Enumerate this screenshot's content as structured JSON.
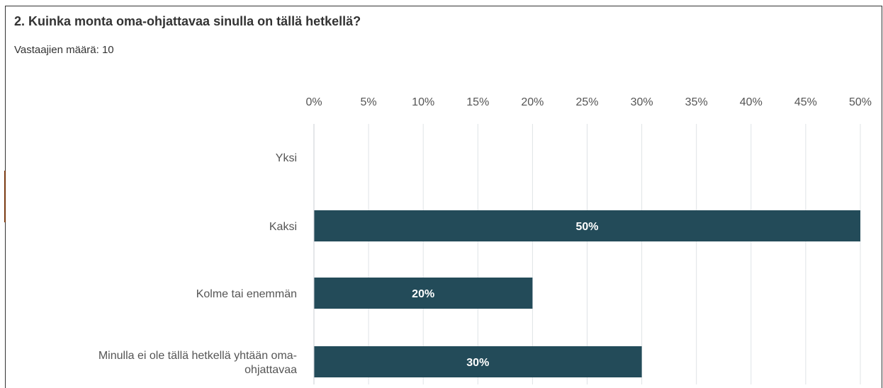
{
  "question": {
    "title": "2. Kuinka monta oma-ohjattavaa sinulla on tällä hetkellä?",
    "respondents_label": "Vastaajien määrä:",
    "respondents_count": "10"
  },
  "colors": {
    "bar": "#234b59",
    "grid": "#dfe3e6",
    "text": "#555555"
  },
  "chart_data": {
    "type": "bar",
    "orientation": "horizontal",
    "categories": [
      [
        "Yksi"
      ],
      [
        "Kaksi"
      ],
      [
        "Kolme tai enemmän"
      ],
      [
        "Minulla ei ole tällä hetkellä yhtään oma-",
        "ohjattavaa"
      ]
    ],
    "values": [
      0,
      50,
      20,
      30
    ],
    "value_labels": [
      "",
      "50%",
      "20%",
      "30%"
    ],
    "x_ticks": [
      "0%",
      "5%",
      "10%",
      "15%",
      "20%",
      "25%",
      "30%",
      "35%",
      "40%",
      "45%",
      "50%"
    ],
    "x_tick_values": [
      0,
      5,
      10,
      15,
      20,
      25,
      30,
      35,
      40,
      45,
      50
    ],
    "xlim": [
      0,
      50
    ],
    "grid": true,
    "tick_position": "top"
  }
}
